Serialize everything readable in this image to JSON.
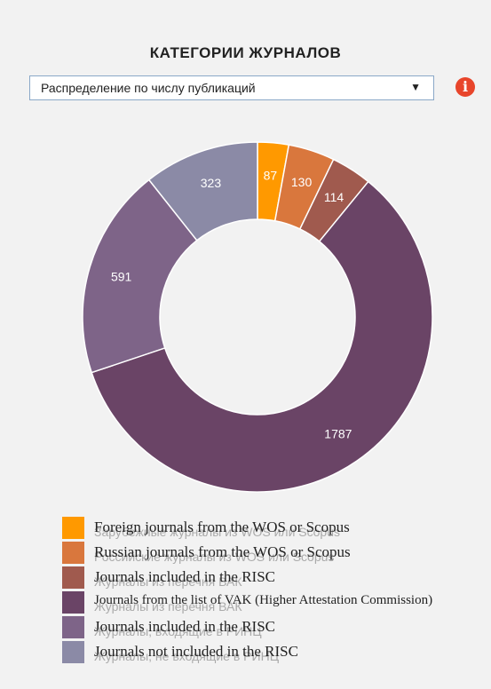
{
  "header": {
    "title": "КАТЕГОРИИ ЖУРНАЛОВ"
  },
  "dropdown": {
    "value": "Распределение по числу публикаций",
    "arrow": "▼"
  },
  "info_icon": {
    "glyph": "i",
    "color": "#e8452b"
  },
  "chart_data": {
    "type": "pie",
    "variant": "donut",
    "values": [
      87,
      130,
      114,
      1787,
      591,
      323
    ],
    "colors": [
      "#ff9900",
      "#d9773d",
      "#a05a4e",
      "#6a4466",
      "#7e6488",
      "#8b8aa6"
    ],
    "labels_color": "#ffffff"
  },
  "legend": {
    "items": [
      {
        "label": "Foreign journals from the WOS or Scopus",
        "ghost": "Зарубежные журналы из WOS или Scopus",
        "color": "#ff9900"
      },
      {
        "label": "Russian journals from the WOS or Scopus",
        "ghost": "Российские журналы из WOS или Scopus",
        "color": "#d9773d"
      },
      {
        "label": "Journals included in the RISC",
        "ghost": "Журналы из перечня ВАК",
        "color": "#a05a4e"
      },
      {
        "label": "Journals from the list of VAK (Higher Attestation Commission)",
        "ghost": "Журналы из перечня ВАК",
        "color": "#6a4466"
      },
      {
        "label": "Journals included in the RISC",
        "ghost": "Журналы, входящие в РИНЦ",
        "color": "#7e6488"
      },
      {
        "label": "Journals not included in the RISC",
        "ghost": "Журналы, не входящие в РИНЦ",
        "color": "#8b8aa6"
      }
    ]
  }
}
